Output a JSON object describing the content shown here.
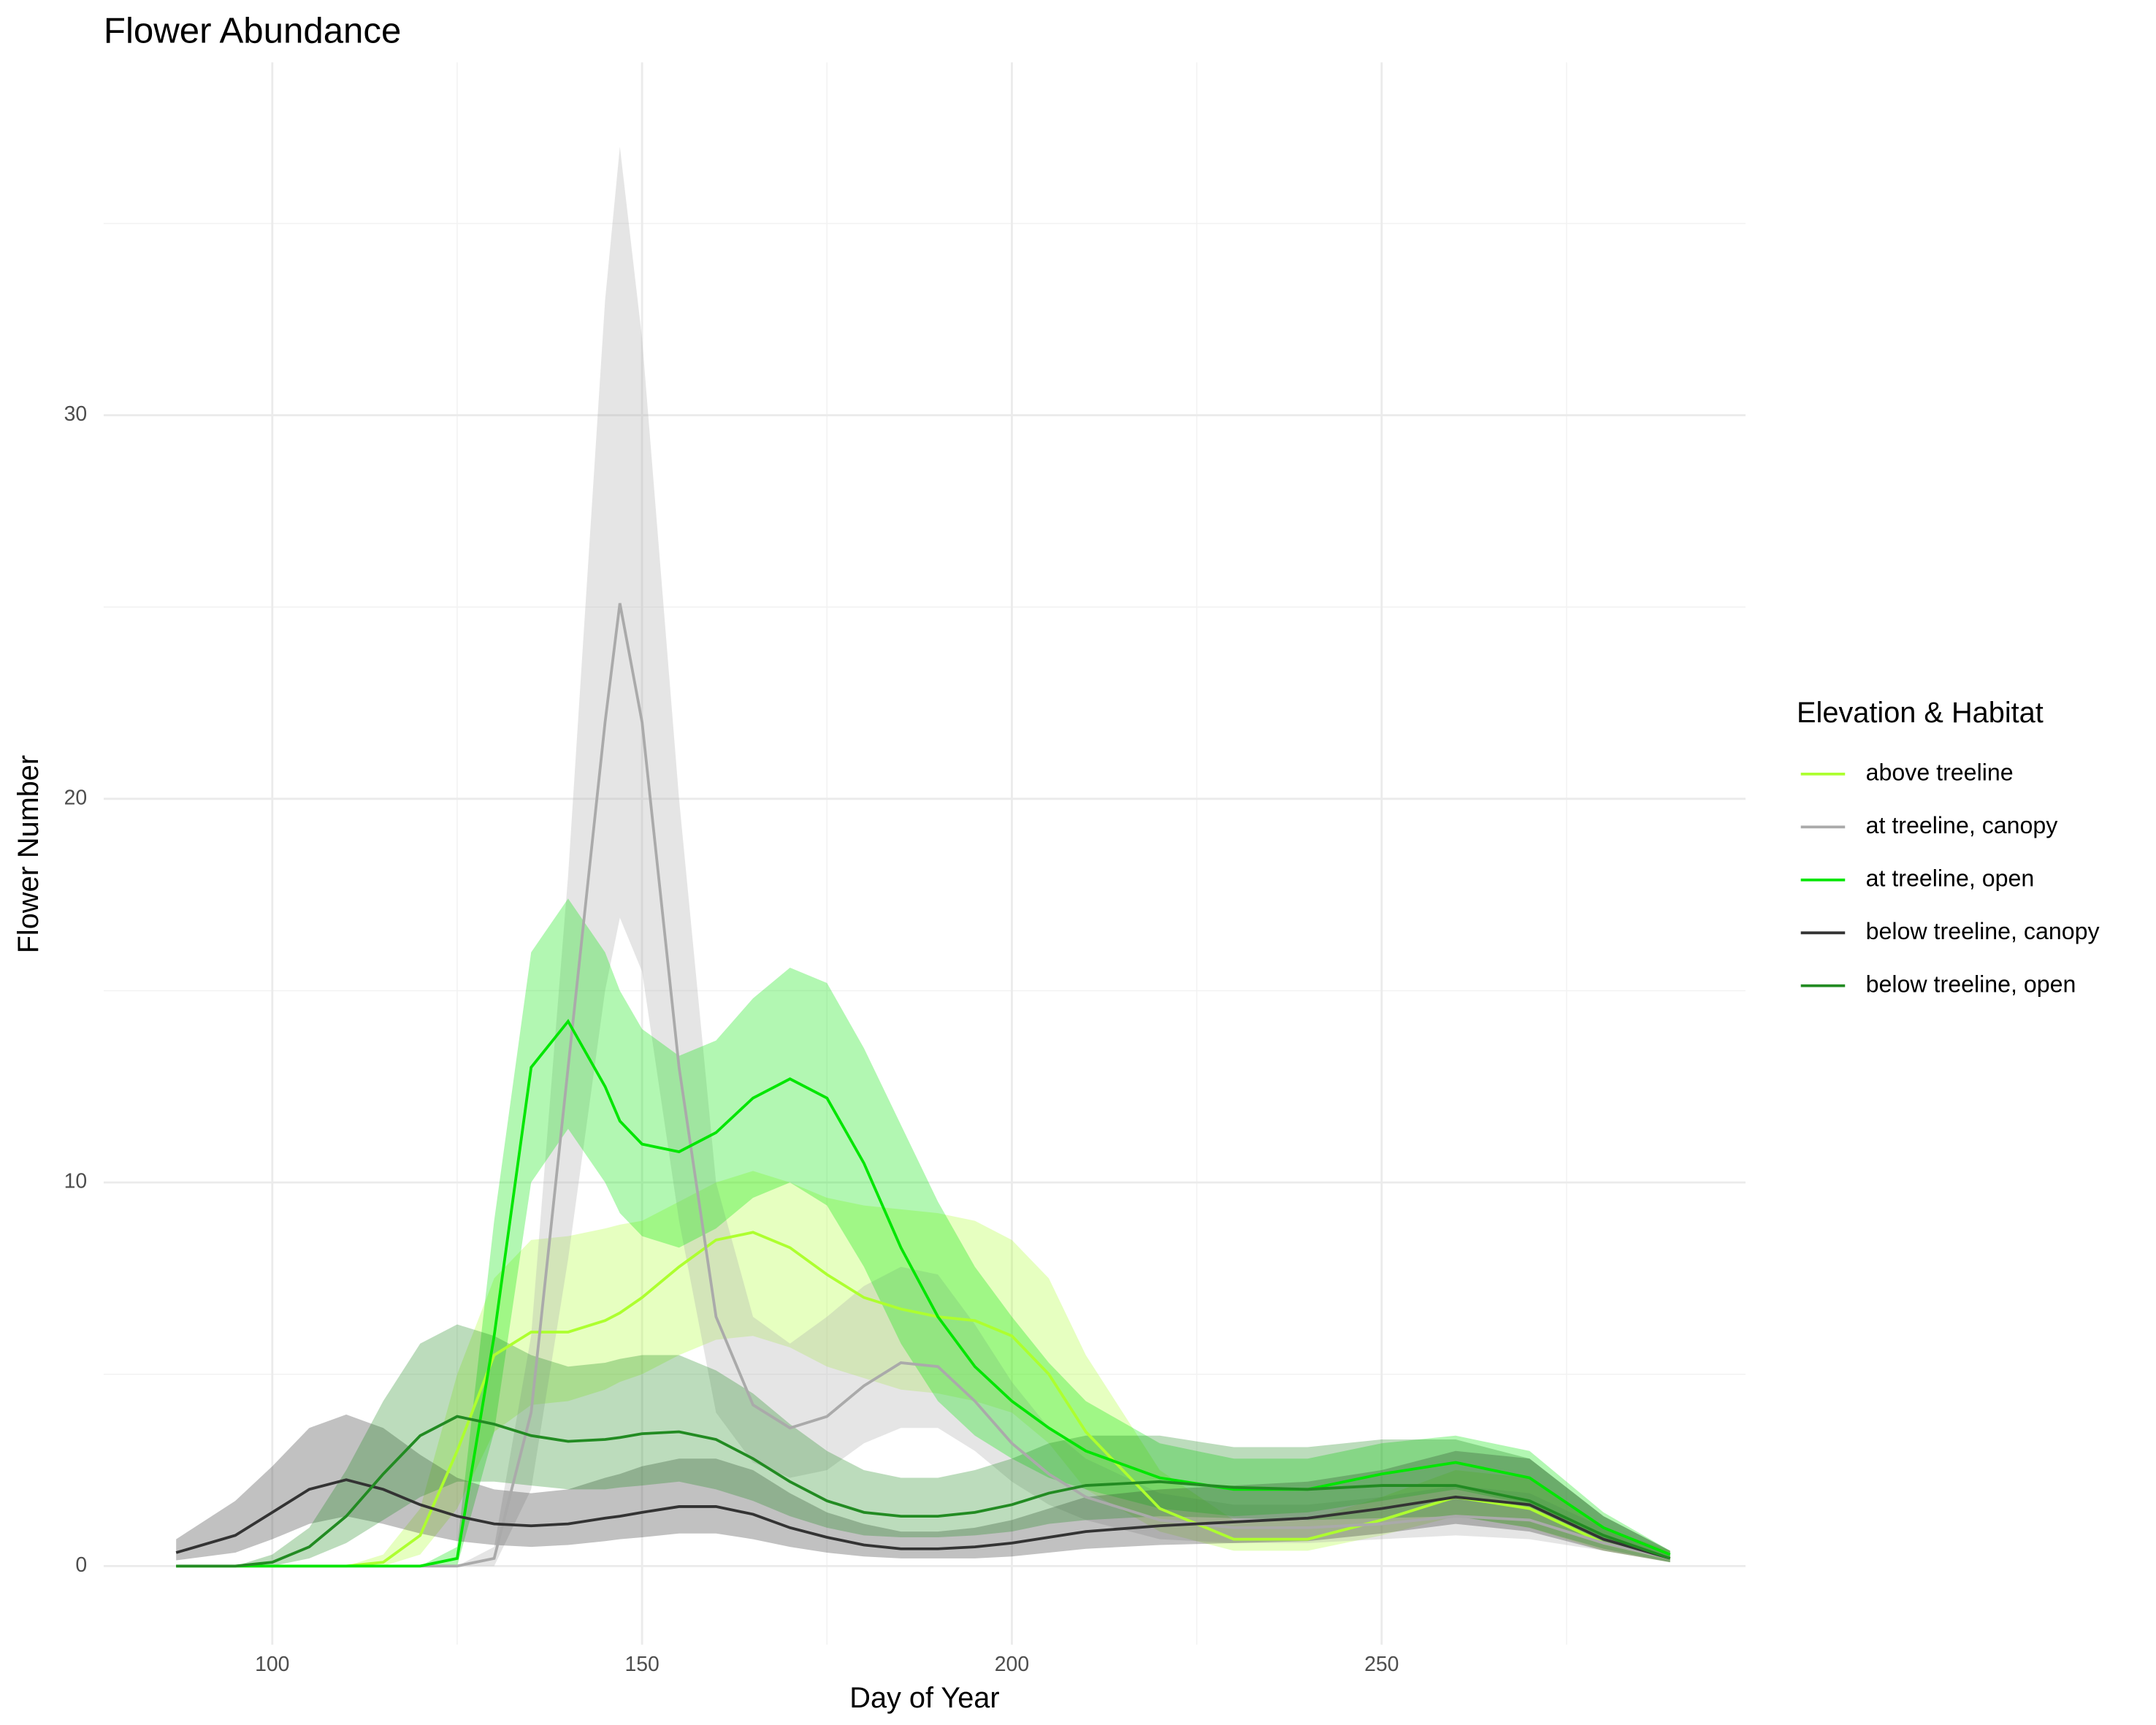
{
  "chart_data": {
    "type": "line",
    "title": "Flower Abundance",
    "x_label": "Day of Year",
    "y_label": "Flower Number",
    "legend_title": "Elevation & Habitat",
    "legend_position": "right",
    "grid": true,
    "ribbon_opacity": 0.3,
    "xlim": [
      77.2,
      299.2
    ],
    "xticks": [
      100,
      150,
      200,
      250
    ],
    "xminor": [
      125,
      175,
      225,
      275
    ],
    "ylim": [
      -2.05,
      39.2
    ],
    "yticks": [
      0,
      10,
      20,
      30
    ],
    "yminor": [
      5,
      15,
      25,
      35
    ],
    "x": [
      87,
      95,
      100,
      105,
      110,
      115,
      120,
      125,
      130,
      135,
      140,
      145,
      147,
      150,
      155,
      160,
      165,
      170,
      175,
      180,
      185,
      190,
      195,
      200,
      205,
      210,
      220,
      230,
      240,
      250,
      260,
      270,
      280,
      289
    ],
    "series": [
      {
        "name": "above treeline",
        "color": "#adff2f",
        "values": [
          0,
          0,
          0,
          0,
          0,
          0.1,
          0.8,
          3,
          5.5,
          6.1,
          6.1,
          6.4,
          6.6,
          7,
          7.8,
          8.5,
          8.7,
          8.3,
          7.6,
          7,
          6.7,
          6.5,
          6.4,
          6,
          5,
          3.5,
          1.5,
          0.7,
          0.7,
          1.2,
          1.8,
          1.5,
          0.6,
          0.2
        ],
        "upper": [
          0,
          0,
          0,
          0,
          0,
          0.3,
          1.5,
          5,
          7.5,
          8.5,
          8.6,
          8.8,
          8.9,
          9,
          9.5,
          10,
          10.3,
          10,
          9.6,
          9.4,
          9.3,
          9.2,
          9,
          8.5,
          7.5,
          5.5,
          2.5,
          1.2,
          1.2,
          1.8,
          2.5,
          2.3,
          1,
          0.4
        ],
        "lower": [
          0,
          0,
          0,
          0,
          0,
          0,
          0.3,
          1.5,
          3.5,
          4.2,
          4.3,
          4.6,
          4.8,
          5,
          5.5,
          5.9,
          6,
          5.7,
          5.2,
          4.9,
          4.6,
          4.5,
          4.3,
          4,
          3.2,
          2,
          0.9,
          0.4,
          0.4,
          0.8,
          1.3,
          1,
          0.4,
          0.1
        ]
      },
      {
        "name": "at treeline, canopy",
        "color": "#aaaaaa",
        "values": [
          0,
          0,
          0,
          0,
          0,
          0,
          0,
          0,
          0.2,
          4,
          13,
          22,
          25.1,
          22,
          13,
          6.5,
          4.2,
          3.6,
          3.9,
          4.7,
          5.3,
          5.2,
          4.3,
          3.2,
          2.4,
          1.8,
          1.2,
          1,
          1,
          1.1,
          1.3,
          1.2,
          0.6,
          0.2
        ],
        "upper": [
          0,
          0,
          0,
          0,
          0,
          0,
          0,
          0,
          0.5,
          6,
          18,
          33,
          37,
          32,
          20,
          10,
          6.5,
          5.8,
          6.5,
          7.3,
          7.8,
          7.6,
          6.3,
          4.8,
          3.6,
          2.8,
          1.9,
          1.6,
          1.6,
          1.8,
          2.1,
          1.9,
          1,
          0.3
        ],
        "lower": [
          0,
          0,
          0,
          0,
          0,
          0,
          0,
          0,
          0,
          2,
          8,
          15,
          16.9,
          15.5,
          9,
          4,
          2.7,
          2.3,
          2.5,
          3.2,
          3.6,
          3.6,
          3,
          2.2,
          1.6,
          1.2,
          0.7,
          0.6,
          0.6,
          0.7,
          0.8,
          0.7,
          0.4,
          0.1
        ]
      },
      {
        "name": "at treeline, open",
        "color": "#00e600",
        "values": [
          0,
          0,
          0,
          0,
          0,
          0,
          0,
          0.2,
          6,
          13,
          14.2,
          12.5,
          11.6,
          11,
          10.8,
          11.3,
          12.2,
          12.7,
          12.2,
          10.5,
          8.3,
          6.5,
          5.2,
          4.3,
          3.6,
          3,
          2.3,
          2,
          2,
          2.4,
          2.7,
          2.3,
          1,
          0.3
        ],
        "upper": [
          0,
          0,
          0,
          0,
          0,
          0,
          0,
          0.5,
          9,
          16,
          17.4,
          16,
          15,
          14,
          13.3,
          13.7,
          14.8,
          15.6,
          15.2,
          13.5,
          11.5,
          9.5,
          7.8,
          6.5,
          5.3,
          4.3,
          3.2,
          2.8,
          2.8,
          3.2,
          3.4,
          3,
          1.4,
          0.4
        ],
        "lower": [
          0,
          0,
          0,
          0,
          0,
          0,
          0,
          0,
          3.5,
          10,
          11.4,
          10,
          9.2,
          8.6,
          8.3,
          8.8,
          9.6,
          10,
          9.4,
          7.8,
          5.8,
          4.3,
          3.4,
          2.8,
          2.3,
          2,
          1.5,
          1.3,
          1.4,
          1.7,
          2,
          1.6,
          0.7,
          0.2
        ]
      },
      {
        "name": "below treeline, canopy",
        "color": "#333333",
        "values": [
          0.35,
          0.8,
          1.4,
          2,
          2.25,
          2,
          1.6,
          1.3,
          1.1,
          1.05,
          1.1,
          1.25,
          1.3,
          1.4,
          1.55,
          1.55,
          1.35,
          1,
          0.75,
          0.55,
          0.45,
          0.45,
          0.5,
          0.6,
          0.75,
          0.9,
          1.05,
          1.15,
          1.25,
          1.5,
          1.8,
          1.6,
          0.7,
          0.2
        ],
        "upper": [
          0.7,
          1.7,
          2.6,
          3.6,
          3.95,
          3.6,
          2.9,
          2.3,
          2,
          1.9,
          2,
          2.3,
          2.4,
          2.6,
          2.8,
          2.8,
          2.5,
          1.9,
          1.4,
          1.1,
          0.9,
          0.9,
          1,
          1.2,
          1.5,
          1.8,
          2,
          2.1,
          2.2,
          2.5,
          3,
          2.8,
          1.3,
          0.4
        ],
        "lower": [
          0.15,
          0.35,
          0.7,
          1.1,
          1.3,
          1.1,
          0.85,
          0.65,
          0.55,
          0.5,
          0.55,
          0.65,
          0.7,
          0.75,
          0.85,
          0.85,
          0.7,
          0.5,
          0.35,
          0.25,
          0.2,
          0.2,
          0.2,
          0.25,
          0.35,
          0.45,
          0.55,
          0.6,
          0.65,
          0.85,
          1.1,
          0.9,
          0.4,
          0.1
        ]
      },
      {
        "name": "below treeline, open",
        "color": "#228b22",
        "values": [
          0,
          0,
          0.1,
          0.5,
          1.3,
          2.4,
          3.4,
          3.9,
          3.7,
          3.4,
          3.25,
          3.3,
          3.35,
          3.45,
          3.5,
          3.3,
          2.8,
          2.2,
          1.7,
          1.4,
          1.3,
          1.3,
          1.4,
          1.6,
          1.9,
          2.1,
          2.2,
          2.05,
          2,
          2.1,
          2.1,
          1.7,
          0.8,
          0.2
        ],
        "upper": [
          0,
          0,
          0.3,
          1,
          2.5,
          4.3,
          5.8,
          6.3,
          6,
          5.5,
          5.2,
          5.3,
          5.4,
          5.5,
          5.5,
          5.1,
          4.5,
          3.7,
          3,
          2.5,
          2.3,
          2.3,
          2.5,
          2.8,
          3.2,
          3.4,
          3.4,
          3.1,
          3.1,
          3.3,
          3.3,
          2.8,
          1.3,
          0.4
        ],
        "lower": [
          0,
          0,
          0,
          0.2,
          0.6,
          1.2,
          1.8,
          2.2,
          2.2,
          2.1,
          2,
          2,
          2.05,
          2.1,
          2.2,
          2,
          1.7,
          1.3,
          1,
          0.8,
          0.75,
          0.75,
          0.8,
          0.9,
          1.1,
          1.2,
          1.3,
          1.25,
          1.2,
          1.25,
          1.3,
          1,
          0.45,
          0.1
        ]
      }
    ]
  }
}
